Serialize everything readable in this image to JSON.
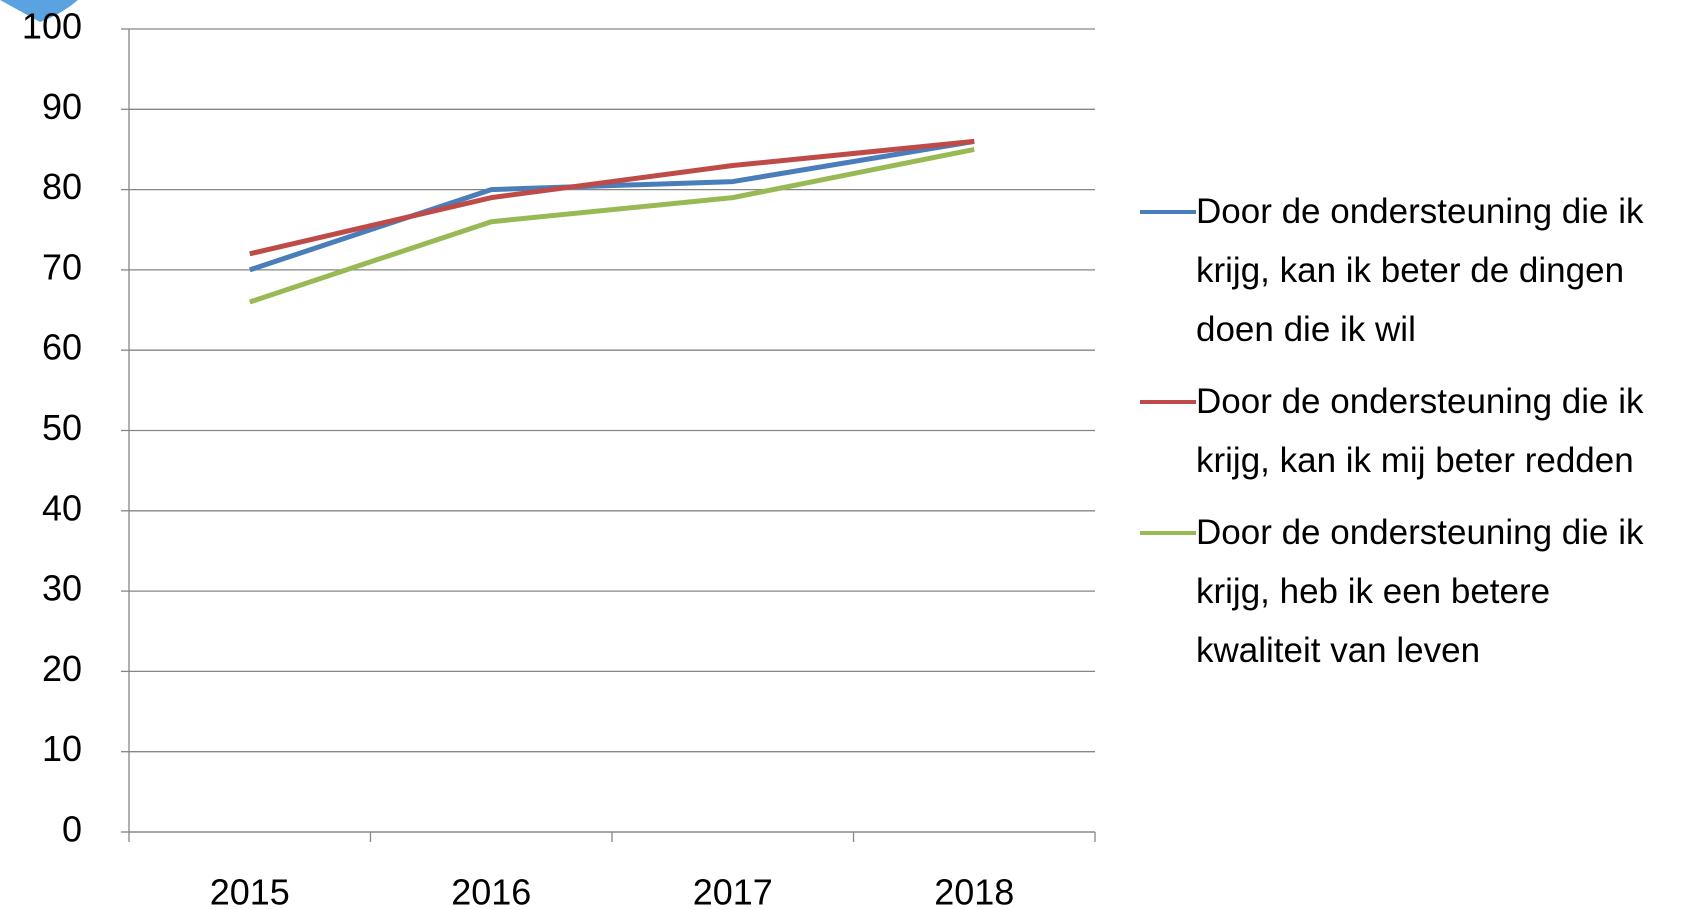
{
  "chart_data": {
    "type": "line",
    "categories": [
      "2015",
      "2016",
      "2017",
      "2018"
    ],
    "series": [
      {
        "name": "Door de ondersteuning die ik krijg, kan ik beter de dingen doen die ik wil",
        "color": "#4a7ebb",
        "values": [
          70,
          80,
          81,
          86
        ]
      },
      {
        "name": "Door de ondersteuning die ik krijg, kan ik mij beter redden",
        "color": "#be4b48",
        "values": [
          72,
          79,
          83,
          86
        ]
      },
      {
        "name": "Door de ondersteuning die ik krijg, heb ik een betere kwaliteit van leven",
        "color": "#98b954",
        "values": [
          66,
          76,
          79,
          85
        ]
      }
    ],
    "ylim": [
      0,
      100
    ],
    "yticks": [
      0,
      10,
      20,
      30,
      40,
      50,
      60,
      70,
      80,
      90,
      100
    ],
    "grid": true,
    "legend": "right"
  }
}
